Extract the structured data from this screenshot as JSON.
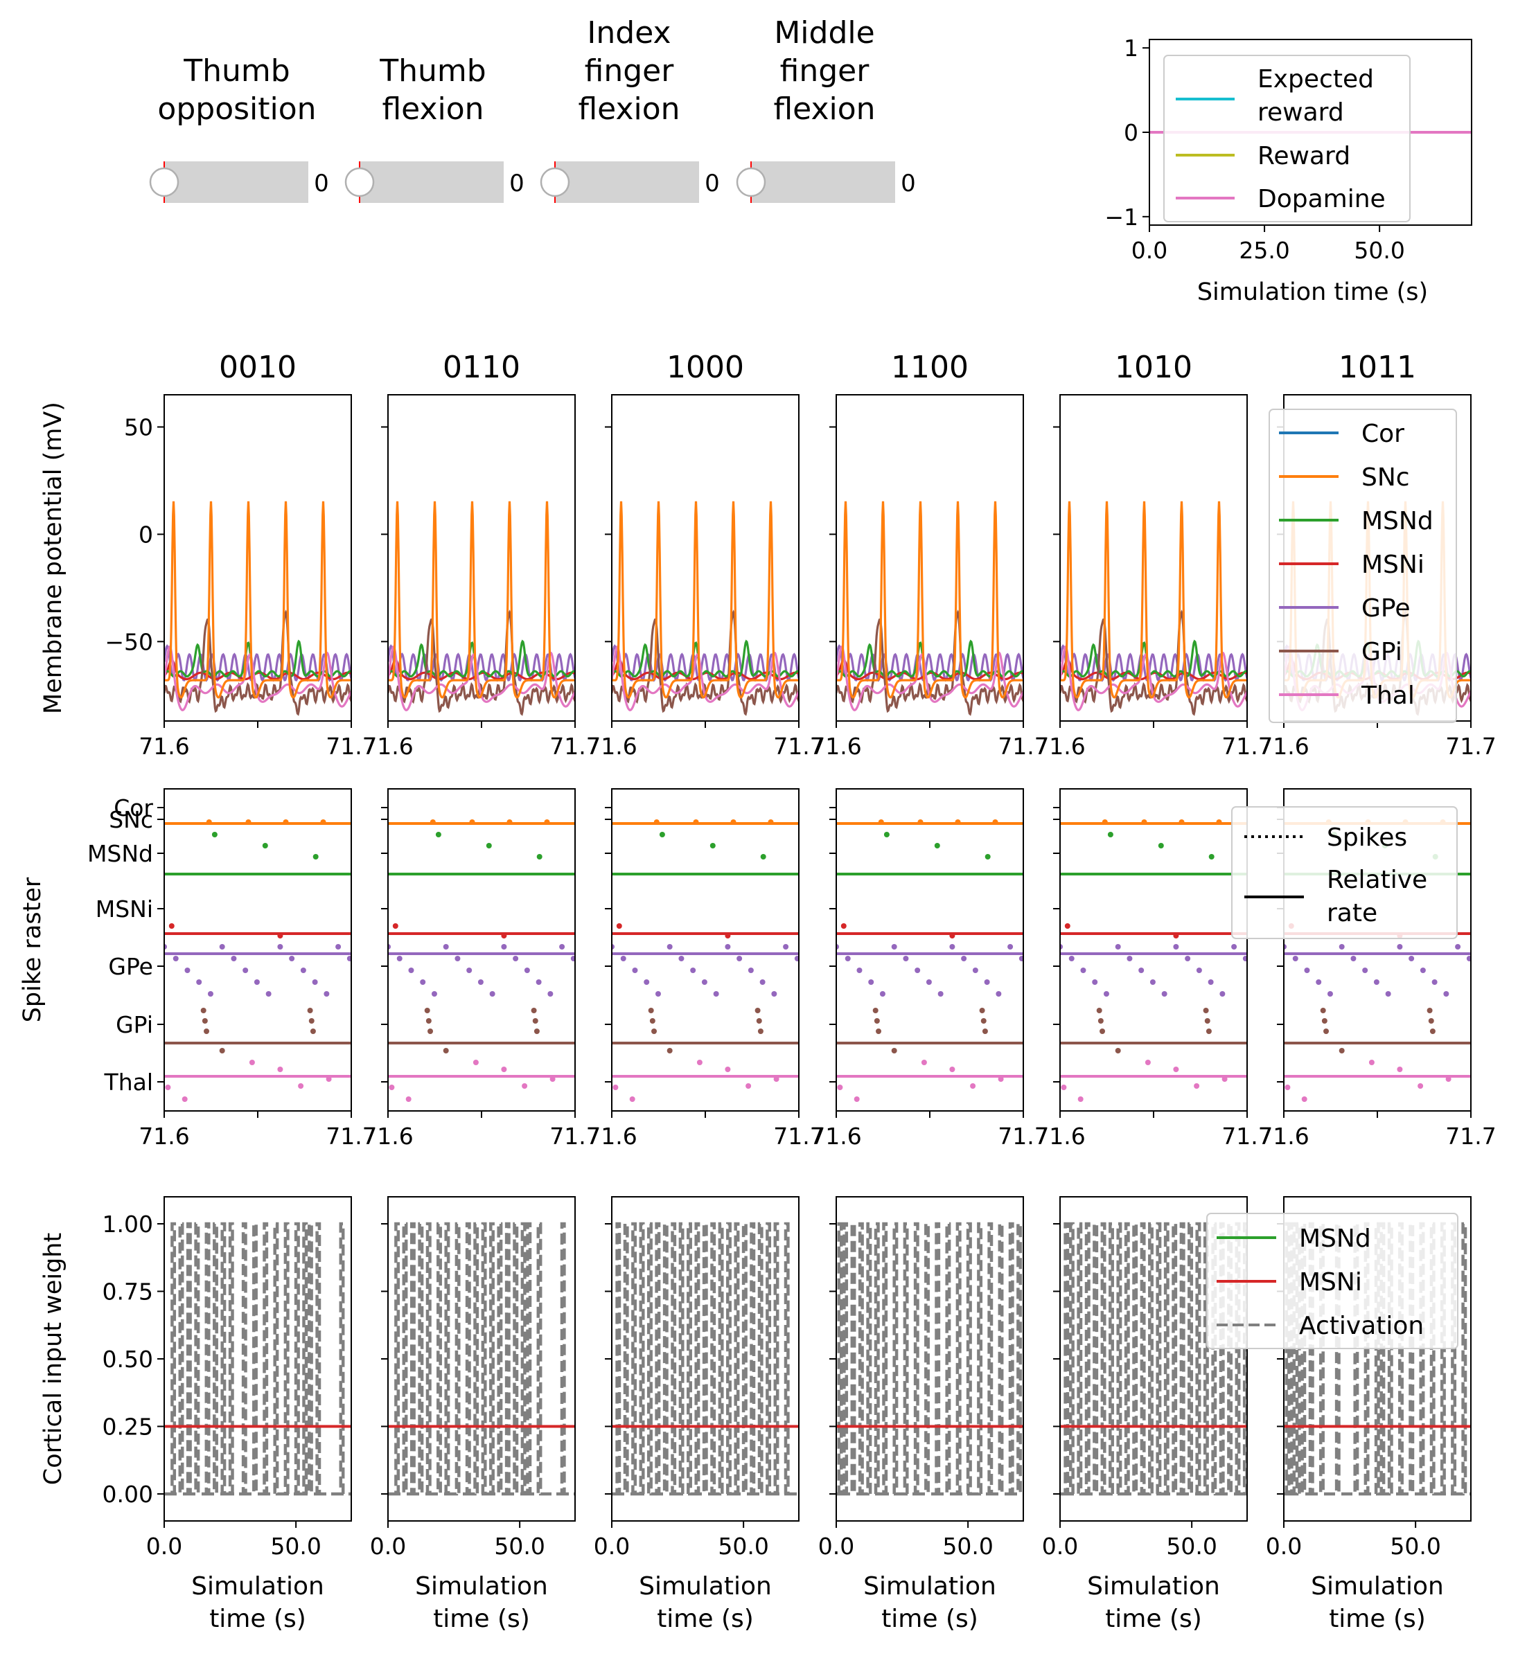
{
  "sliders": [
    {
      "label_lines": [
        "Thumb",
        "opposition"
      ],
      "value": "0"
    },
    {
      "label_lines": [
        "Thumb",
        "flexion"
      ],
      "value": "0"
    },
    {
      "label_lines": [
        "Index",
        "finger",
        "flexion"
      ],
      "value": "0"
    },
    {
      "label_lines": [
        "Middle",
        "finger",
        "flexion"
      ],
      "value": "0"
    }
  ],
  "reward_plot": {
    "xlabel": "Simulation time (s)",
    "xticks": [
      "0.0",
      "25.0",
      "50.0"
    ],
    "xtick_values": [
      0,
      25,
      50
    ],
    "xlim": [
      0,
      70
    ],
    "yticks": [
      "1",
      "0",
      "−1"
    ],
    "ytick_values": [
      1,
      0,
      -1
    ],
    "ylim": [
      -1.1,
      1.1
    ],
    "legend": [
      {
        "label_lines": [
          "Expected",
          "reward"
        ],
        "color": "#17becf"
      },
      {
        "label_lines": [
          "Reward"
        ],
        "color": "#bcbd22"
      },
      {
        "label_lines": [
          "Dopamine"
        ],
        "color": "#e377c2"
      }
    ]
  },
  "columns": [
    "0010",
    "0110",
    "1000",
    "1100",
    "1010",
    "1011"
  ],
  "colors": {
    "Cor": "#1f77b4",
    "SNc": "#ff7f0e",
    "MSNd": "#2ca02c",
    "MSNi": "#d62728",
    "GPe": "#9467bd",
    "GPi": "#8c564b",
    "Thal": "#e377c2",
    "Activation": "#808080"
  },
  "membrane": {
    "ylabel": "Membrane potential (mV)",
    "yticks": [
      "50",
      "0",
      "−50"
    ],
    "ytick_values": [
      50,
      0,
      -50
    ],
    "ylim": [
      -87,
      65
    ],
    "xticks": [
      "71.6",
      "71.7"
    ],
    "xlim": [
      71.6,
      71.7
    ],
    "legend": [
      "Cor",
      "SNc",
      "MSNd",
      "MSNi",
      "GPe",
      "GPi",
      "Thal"
    ]
  },
  "raster": {
    "ylabel": "Spike raster",
    "yticks": [
      "Cor",
      "SNc",
      "MSNd",
      "MSNi",
      "GPe",
      "GPi",
      "Thal"
    ],
    "xticks": [
      "71.6",
      "71.7"
    ],
    "xlim": [
      71.6,
      71.7
    ],
    "legend": [
      {
        "label_lines": [
          "Spikes"
        ],
        "style": "dotted"
      },
      {
        "label_lines": [
          "Relative",
          "rate"
        ],
        "style": "solid"
      }
    ]
  },
  "weights": {
    "ylabel": "Cortical input weight",
    "yticks": [
      "1.00",
      "0.75",
      "0.50",
      "0.25",
      "0.00"
    ],
    "ytick_values": [
      1.0,
      0.75,
      0.5,
      0.25,
      0.0
    ],
    "ylim": [
      -0.1,
      1.1
    ],
    "xticks": [
      "0.0",
      "50.0"
    ],
    "xtick_values": [
      0,
      50
    ],
    "xlim": [
      0,
      71
    ],
    "xlabel_lines": [
      "Simulation",
      "time (s)"
    ],
    "msni_weight": 0.25,
    "legend": [
      {
        "label": "MSNd",
        "color": "#2ca02c",
        "style": "solid"
      },
      {
        "label": "MSNi",
        "color": "#d62728",
        "style": "solid"
      },
      {
        "label": "Activation",
        "color": "#808080",
        "style": "dashed"
      }
    ]
  },
  "chart_data": [
    {
      "type": "line",
      "panel": "reward",
      "xlabel": "Simulation time (s)",
      "xlim": [
        0,
        70
      ],
      "ylim": [
        -1.1,
        1.1
      ],
      "series": [
        {
          "name": "Expected reward",
          "x": [
            0,
            70
          ],
          "y": [
            0,
            0
          ]
        },
        {
          "name": "Reward",
          "x": [
            0,
            70
          ],
          "y": [
            0,
            0
          ]
        },
        {
          "name": "Dopamine",
          "x": [
            0,
            70
          ],
          "y": [
            0,
            0
          ]
        }
      ]
    },
    {
      "type": "line",
      "panel": "membrane potential",
      "ylabel": "Membrane potential (mV)",
      "xlim": [
        71.6,
        71.7
      ],
      "ylim": [
        -87,
        65
      ],
      "series": [
        {
          "name": "SNc",
          "spike_times": [
            71.605,
            71.625,
            71.645,
            71.665,
            71.685
          ],
          "peak": 16,
          "rest": -70
        },
        {
          "name": "MSNd",
          "mean": -64,
          "bumps": [
            71.618,
            71.645,
            71.672
          ]
        },
        {
          "name": "MSNi",
          "mean": -66
        },
        {
          "name": "GPe",
          "mean": -58,
          "oscillation_period": 0.006
        },
        {
          "name": "GPi",
          "mean": -72,
          "bursts": [
            71.623,
            71.665
          ]
        },
        {
          "name": "Thal",
          "mean": -68,
          "bursts": [
            71.603,
            71.646,
            71.687
          ]
        }
      ]
    },
    {
      "type": "scatter",
      "panel": "spike raster",
      "categories": [
        "Cor",
        "SNc",
        "MSNd",
        "MSNi",
        "GPe",
        "GPi",
        "Thal"
      ],
      "xlim": [
        71.6,
        71.7
      ],
      "spikes": {
        "SNc": [
          71.624,
          71.645,
          71.665,
          71.685
        ],
        "MSNd": [
          71.627,
          71.654,
          71.681
        ],
        "MSNi": [
          71.604,
          71.662
        ],
        "GPe": [
          71.61,
          71.616,
          71.622,
          71.628,
          71.634,
          71.64,
          71.646,
          71.652,
          71.658,
          71.664,
          71.67,
          71.676,
          71.682,
          71.688,
          71.694
        ],
        "GPi": [
          71.621,
          71.622,
          71.623,
          71.678,
          71.679,
          71.68
        ],
        "Thal": [
          71.602,
          71.611,
          71.647,
          71.673,
          71.688
        ]
      },
      "relative_rate": {
        "SNc": 1.0,
        "MSNd": 0.5,
        "MSNi": 0.5,
        "GPe": 0.5,
        "GPi": 0.5,
        "Thal": 0.5
      }
    },
    {
      "type": "line",
      "panel": "cortical input weight",
      "ylabel": "Cortical input weight",
      "xlim": [
        0,
        71
      ],
      "ylim": [
        -0.1,
        1.1
      ],
      "series": [
        {
          "name": "MSNi",
          "x": [
            0,
            71
          ],
          "y": [
            0.25,
            0.25
          ]
        },
        {
          "name": "Activation",
          "pulse_times": [
            [
              3,
              6,
              9,
              12,
              16,
              19,
              22,
              25,
              30,
              34,
              38,
              42,
              46,
              50,
              53,
              55,
              58,
              67
            ],
            [
              3,
              6,
              9,
              12,
              15,
              19,
              22,
              26,
              30,
              33,
              36,
              39,
              42,
              45,
              48,
              51,
              53,
              57,
              66
            ],
            [
              2,
              5,
              8,
              11,
              14,
              17,
              20,
              23,
              26,
              29,
              32,
              35,
              38,
              41,
              44,
              47,
              50,
              53,
              56,
              59,
              62,
              66
            ],
            [
              1,
              3,
              6,
              9,
              12,
              15,
              18,
              22,
              26,
              30,
              34,
              38,
              42,
              46,
              50,
              54,
              58,
              62,
              66,
              69
            ],
            [
              2,
              4,
              7,
              10,
              13,
              16,
              19,
              22,
              25,
              28,
              31,
              34,
              37,
              40,
              43,
              46,
              49,
              52,
              55,
              58,
              61,
              64,
              67,
              70
            ],
            [
              1,
              3,
              5,
              7,
              10,
              14,
              20,
              27,
              31,
              35,
              37,
              40,
              44,
              48,
              52,
              56,
              60,
              64,
              68
            ]
          ]
        }
      ]
    }
  ]
}
